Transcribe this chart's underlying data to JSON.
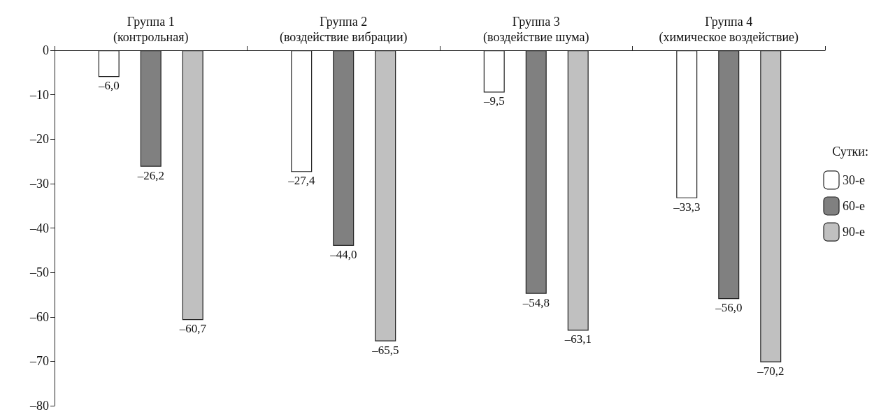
{
  "chart_data": {
    "type": "bar",
    "categories": [
      "Группа 1\n(контрольная)",
      "Группа 2\n(воздействие вибрации)",
      "Группа 3\n(воздействие шума)",
      "Группа 4\n(химическое воздействие)"
    ],
    "legend_title": "Сутки:",
    "legend": "right",
    "grid": false,
    "ylim": [
      -80,
      0
    ],
    "yticks": [
      {
        "value": -80,
        "label": "–80"
      },
      {
        "value": -70,
        "label": "–70"
      },
      {
        "value": -60,
        "label": "–60"
      },
      {
        "value": -50,
        "label": "–50"
      },
      {
        "value": -40,
        "label": "–40"
      },
      {
        "value": -30,
        "label": "–30"
      },
      {
        "value": -20,
        "label": "–20"
      },
      {
        "value": -10,
        "label": "–10"
      },
      0
    ],
    "series": [
      {
        "name": "30-е",
        "color": "#ffffff",
        "values": [
          -6.0,
          -27.4,
          -9.5,
          -33.3
        ],
        "value_labels": [
          "–6,0",
          "–27,4",
          "–9,5",
          "–33,3"
        ]
      },
      {
        "name": "60-е",
        "color": "#808080",
        "values": [
          -26.2,
          -44.0,
          -54.8,
          -56.0
        ],
        "value_labels": [
          "–26,2",
          "–44,0",
          "–54,8",
          "–56,0"
        ]
      },
      {
        "name": "90-е",
        "color": "#c0c0c0",
        "values": [
          -60.7,
          -65.5,
          -63.1,
          -70.2
        ],
        "value_labels": [
          "–60,7",
          "–65,5",
          "–63,1",
          "–70,2"
        ]
      }
    ]
  }
}
